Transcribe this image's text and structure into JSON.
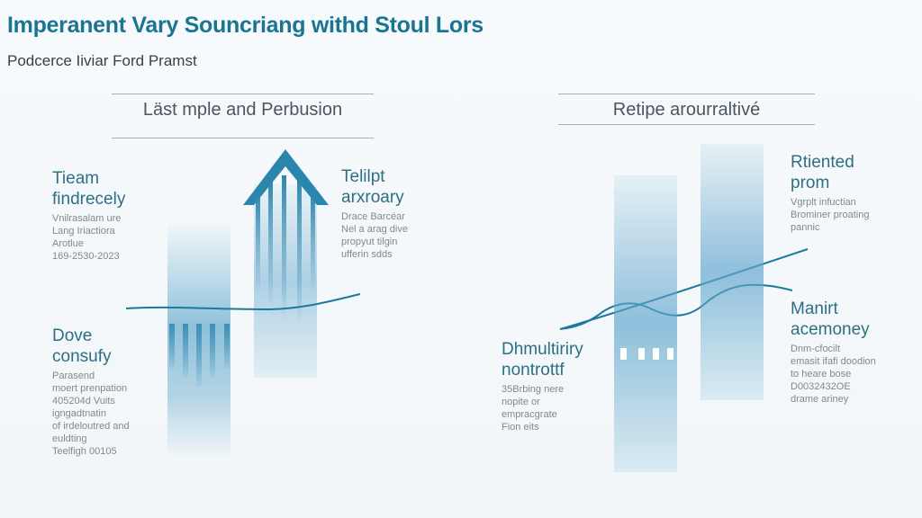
{
  "header": {
    "title": "Imperanent Vary Souncriang withd Stoul Lors",
    "subtitle": "Podcerce Iiviar Ford Pramst"
  },
  "colors": {
    "accent": "#1b7591",
    "line": "#1e7a99",
    "bar": "#6fb0d0"
  },
  "left_panel": {
    "title": "Läst mple and Perbusion",
    "blocks": [
      {
        "heading": [
          "Tieam",
          "findrecely"
        ],
        "lines": [
          "Vnilrasalam ure",
          "Lang Iriactiora",
          "Arotlue",
          "169-2530-2023"
        ]
      },
      {
        "heading": [
          "Telilpt",
          "arxroary"
        ],
        "lines": [
          "Drace Barcéar",
          "Nel a arag dive",
          "propyut tilgin",
          "ufferin sdds"
        ]
      },
      {
        "heading": [
          "Dove",
          "consufy"
        ],
        "lines": [
          "Parasend",
          "moert prenpation",
          "405204d Vuits",
          "igngadtnatin",
          "of irdeloutred and",
          "euldting",
          "Teelfigh 00105"
        ]
      }
    ]
  },
  "right_panel": {
    "title": "Retipe arourraltivé",
    "blocks": [
      {
        "heading": [
          "Rtiented",
          "prom"
        ],
        "lines": [
          "Vgrplt infuctian",
          "Brominer proating",
          "pannic"
        ]
      },
      {
        "heading": [
          "Manirt",
          "acemoney"
        ],
        "lines": [
          "Dnm-cfocilt",
          "emasit ifafi doodion",
          "to heare bose",
          "D0032432OE",
          "drame ariney"
        ]
      },
      {
        "heading": [
          "Dhmultiriry",
          "nontrottf"
        ],
        "lines": [
          "35Brbing nere",
          "nopite or",
          "empracgrate",
          "Fion eits"
        ]
      }
    ]
  }
}
